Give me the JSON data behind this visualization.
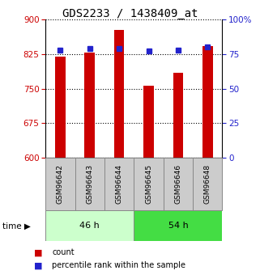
{
  "title": "GDS2233 / 1438409_at",
  "samples": [
    "GSM96642",
    "GSM96643",
    "GSM96644",
    "GSM96645",
    "GSM96646",
    "GSM96648"
  ],
  "counts": [
    820,
    828,
    878,
    757,
    785,
    843
  ],
  "percentiles": [
    78,
    79,
    79,
    77,
    78,
    80
  ],
  "ylim_left": [
    600,
    900
  ],
  "ylim_right": [
    0,
    100
  ],
  "yticks_left": [
    600,
    675,
    750,
    825,
    900
  ],
  "yticks_right": [
    0,
    25,
    50,
    75,
    100
  ],
  "bar_color": "#cc0000",
  "percentile_color": "#2222cc",
  "group1_label": "46 h",
  "group2_label": "54 h",
  "group1_indices": [
    0,
    1,
    2
  ],
  "group2_indices": [
    3,
    4,
    5
  ],
  "group1_color": "#ccffcc",
  "group2_color": "#44dd44",
  "legend_count": "count",
  "legend_percentile": "percentile rank within the sample",
  "bar_width": 0.35,
  "title_fontsize": 10,
  "tick_fontsize": 7.5,
  "label_fontsize": 6.5,
  "group_fontsize": 8,
  "legend_fontsize": 7
}
